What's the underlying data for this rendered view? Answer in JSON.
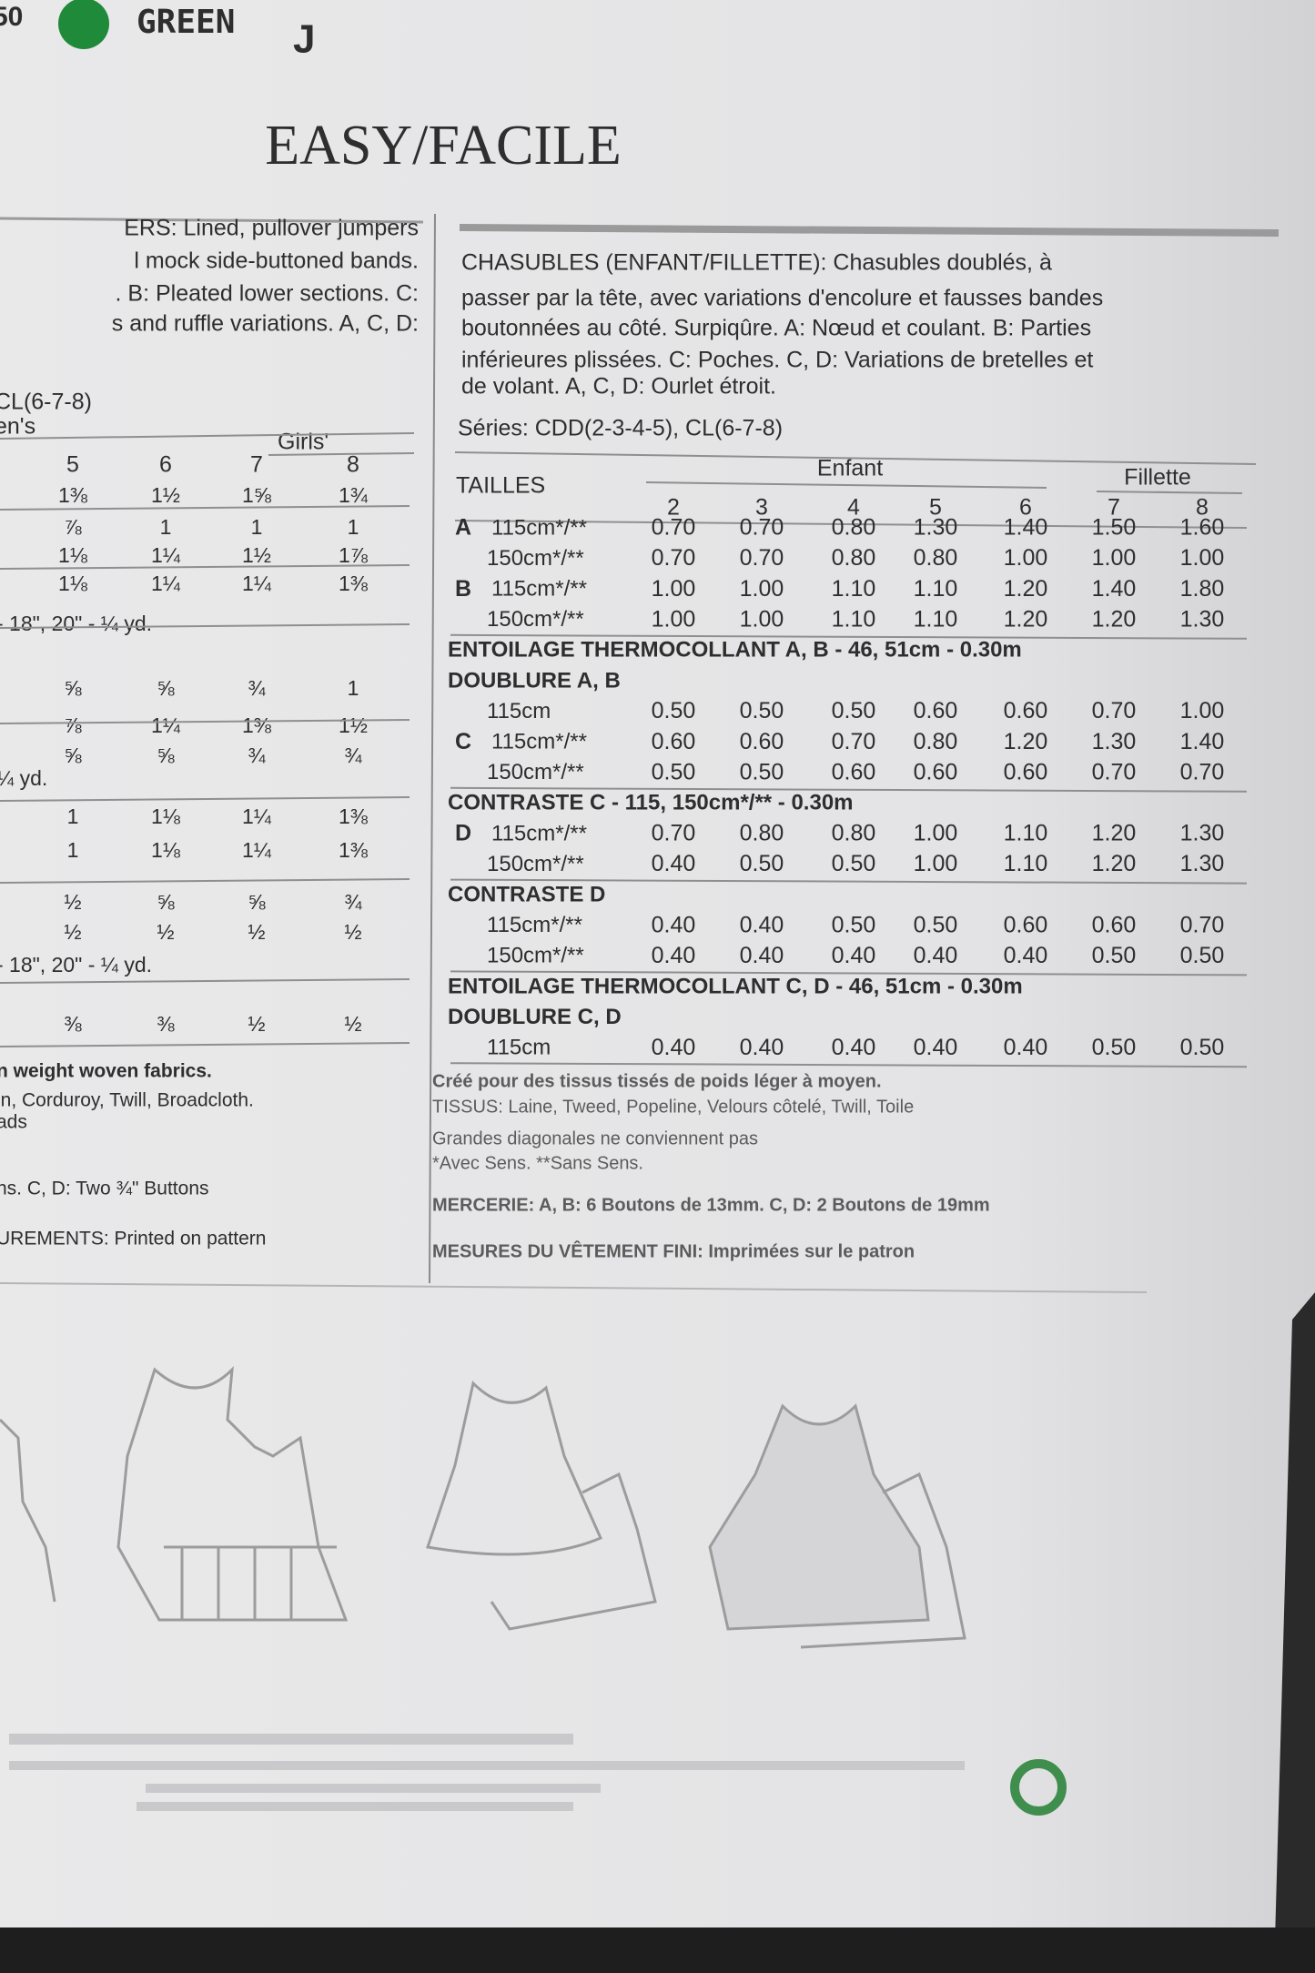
{
  "header": {
    "page_number": "50",
    "color_name": "GREEN",
    "view_letter": "J",
    "title": "EASY/FACILE"
  },
  "english": {
    "description": [
      "ERS: Lined, pullover jumpers",
      "l mock side-buttoned bands.",
      ". B: Pleated lower sections. C:",
      "s and ruffle variations. A, C, D:"
    ],
    "series": "CL(6-7-8)",
    "group_labels": [
      "en's",
      "Girls'"
    ],
    "sizes": [
      "5",
      "6",
      "7",
      "8"
    ],
    "rows": [
      {
        "values": [
          "1⅜",
          "1½",
          "1⅝",
          "1¾"
        ]
      },
      {
        "values": [
          "⅞",
          "1",
          "1",
          "1"
        ]
      },
      {
        "values": [
          "1⅛",
          "1¼",
          "1½",
          "1⅞"
        ]
      },
      {
        "values": [
          "1⅛",
          "1¼",
          "1¼",
          "1⅜"
        ]
      },
      {
        "text": "- 18\", 20\" - ¼ yd."
      },
      {
        "values": [
          "⅝",
          "⅝",
          "¾",
          "1"
        ]
      },
      {
        "values": [
          "⅞",
          "1¼",
          "1⅜",
          "1½"
        ]
      },
      {
        "values": [
          "⅝",
          "⅝",
          "¾",
          "¾"
        ]
      },
      {
        "text": "¼ yd."
      },
      {
        "values": [
          "1",
          "1⅛",
          "1¼",
          "1⅜"
        ]
      },
      {
        "values": [
          "1",
          "1⅛",
          "1¼",
          "1⅜"
        ]
      },
      {
        "values": [
          "½",
          "⅝",
          "⅝",
          "¾"
        ]
      },
      {
        "values": [
          "½",
          "½",
          "½",
          "½"
        ]
      },
      {
        "text": "- 18\", 20\" - ¼ yd."
      },
      {
        "values": [
          "⅜",
          "⅜",
          "½",
          "½"
        ]
      }
    ],
    "notes": [
      "n weight woven fabrics.",
      "in, Corduroy, Twill, Broadcloth.",
      "ads",
      "ns. C, D: Two ¾\" Buttons",
      "UREMENTS: Printed on pattern"
    ]
  },
  "french": {
    "description": [
      "CHASUBLES (ENFANT/FILLETTE): Chasubles doublés, à",
      "passer par la tête, avec variations d'encolure et fausses bandes",
      "boutonnées au côté. Surpiqûre. A: Nœud et coulant. B: Parties",
      "inférieures plissées. C: Poches. C, D: Variations de bretelles et",
      "de volant. A, C, D: Ourlet étroit."
    ],
    "series": "Séries: CDD(2-3-4-5), CL(6-7-8)",
    "size_header": "TAILLES",
    "group_labels": [
      "Enfant",
      "Fillette"
    ],
    "sizes": [
      "2",
      "3",
      "4",
      "5",
      "6",
      "7",
      "8"
    ],
    "rows": [
      {
        "view": "A",
        "label": "115cm*/**",
        "values": [
          0.7,
          0.7,
          0.8,
          1.3,
          1.4,
          1.5,
          1.6
        ],
        "value_labels": [
          "0.70",
          "0.70",
          "0.80",
          "1.30",
          "1.40",
          "1.50",
          "1.60"
        ]
      },
      {
        "label": "150cm*/**",
        "values": [
          0.7,
          0.7,
          0.8,
          0.8,
          1.0,
          1.0,
          1.0
        ],
        "value_labels": [
          "0.70",
          "0.70",
          "0.80",
          "0.80",
          "1.00",
          "1.00",
          "1.00"
        ]
      },
      {
        "view": "B",
        "label": "115cm*/**",
        "values": [
          1.0,
          1.0,
          1.1,
          1.1,
          1.2,
          1.4,
          1.8
        ],
        "value_labels": [
          "1.00",
          "1.00",
          "1.10",
          "1.10",
          "1.20",
          "1.40",
          "1.80"
        ]
      },
      {
        "label": "150cm*/**",
        "values": [
          1.0,
          1.0,
          1.1,
          1.1,
          1.2,
          1.2,
          1.3
        ],
        "value_labels": [
          "1.00",
          "1.00",
          "1.10",
          "1.10",
          "1.20",
          "1.20",
          "1.30"
        ]
      },
      {
        "text": "ENTOILAGE THERMOCOLLANT A, B - 46, 51cm - 0.30m"
      },
      {
        "text": "DOUBLURE A, B"
      },
      {
        "label": "115cm",
        "values": [
          0.5,
          0.5,
          0.5,
          0.6,
          0.6,
          0.7,
          1.0
        ],
        "value_labels": [
          "0.50",
          "0.50",
          "0.50",
          "0.60",
          "0.60",
          "0.70",
          "1.00"
        ]
      },
      {
        "view": "C",
        "label": "115cm*/**",
        "values": [
          0.6,
          0.6,
          0.7,
          0.8,
          1.2,
          1.3,
          1.4
        ],
        "value_labels": [
          "0.60",
          "0.60",
          "0.70",
          "0.80",
          "1.20",
          "1.30",
          "1.40"
        ]
      },
      {
        "label": "150cm*/**",
        "values": [
          0.5,
          0.5,
          0.6,
          0.6,
          0.6,
          0.7,
          0.7
        ],
        "value_labels": [
          "0.50",
          "0.50",
          "0.60",
          "0.60",
          "0.60",
          "0.70",
          "0.70"
        ]
      },
      {
        "text": "CONTRASTE C - 115, 150cm*/** - 0.30m"
      },
      {
        "view": "D",
        "label": "115cm*/**",
        "values": [
          0.7,
          0.8,
          0.8,
          1.0,
          1.1,
          1.2,
          1.3
        ],
        "value_labels": [
          "0.70",
          "0.80",
          "0.80",
          "1.00",
          "1.10",
          "1.20",
          "1.30"
        ]
      },
      {
        "label": "150cm*/**",
        "values": [
          0.4,
          0.5,
          0.5,
          1.0,
          1.1,
          1.2,
          1.3
        ],
        "value_labels": [
          "0.40",
          "0.50",
          "0.50",
          "1.00",
          "1.10",
          "1.20",
          "1.30"
        ]
      },
      {
        "text": "CONTRASTE D"
      },
      {
        "label": "115cm*/**",
        "values": [
          0.4,
          0.4,
          0.5,
          0.5,
          0.6,
          0.6,
          0.7
        ],
        "value_labels": [
          "0.40",
          "0.40",
          "0.50",
          "0.50",
          "0.60",
          "0.60",
          "0.70"
        ]
      },
      {
        "label": "150cm*/**",
        "values": [
          0.4,
          0.4,
          0.4,
          0.4,
          0.4,
          0.5,
          0.5
        ],
        "value_labels": [
          "0.40",
          "0.40",
          "0.40",
          "0.40",
          "0.40",
          "0.50",
          "0.50"
        ]
      },
      {
        "text": "ENTOILAGE THERMOCOLLANT C, D - 46, 51cm - 0.30m"
      },
      {
        "text": "DOUBLURE C, D"
      },
      {
        "label": "115cm",
        "values": [
          0.4,
          0.4,
          0.4,
          0.4,
          0.4,
          0.5,
          0.5
        ],
        "value_labels": [
          "0.40",
          "0.40",
          "0.40",
          "0.40",
          "0.40",
          "0.50",
          "0.50"
        ]
      }
    ],
    "notes": [
      "Créé pour des tissus tissés de poids léger à moyen.",
      "TISSUS: Laine, Tweed, Popeline, Velours côtelé, Twill, Toile",
      "Grandes diagonales ne conviennent pas",
      "*Avec Sens. **Sans Sens.",
      "MERCERIE: A, B: 6 Boutons de 13mm. C, D: 2 Boutons de 19mm",
      "MESURES DU VÊTEMENT FINI: Imprimées sur le patron"
    ]
  }
}
